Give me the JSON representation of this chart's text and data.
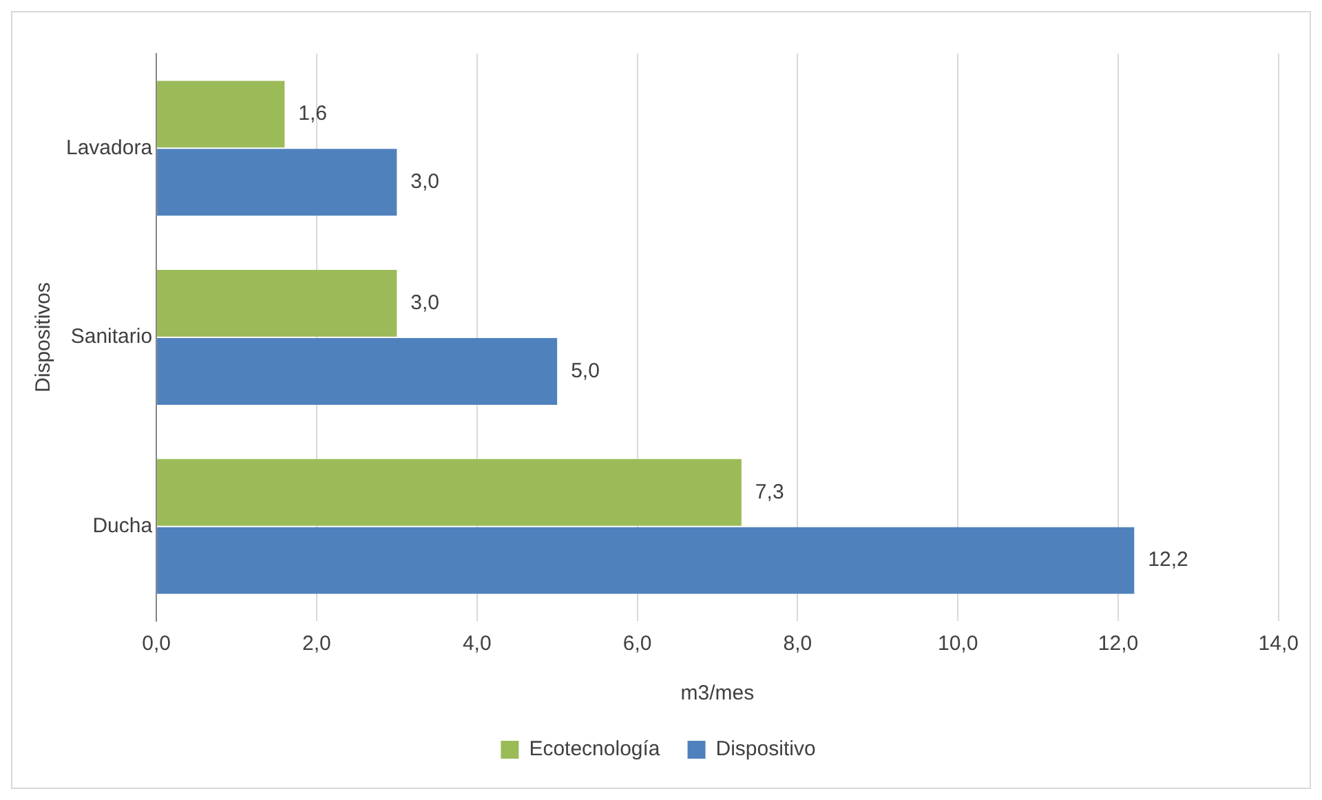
{
  "chart_data": {
    "type": "bar",
    "orientation": "horizontal",
    "categories": [
      "Lavadora",
      "Sanitario",
      "Ducha"
    ],
    "series": [
      {
        "name": "Ecotecnología",
        "color": "#9bbb59",
        "values": [
          1.6,
          3.0,
          7.3
        ],
        "value_labels": [
          "1,6",
          "3,0",
          "7,3"
        ]
      },
      {
        "name": "Dispositivo",
        "color": "#4f81bd",
        "values": [
          3.0,
          5.0,
          12.2
        ],
        "value_labels": [
          "3,0",
          "5,0",
          "12,2"
        ]
      }
    ],
    "xlabel": "m3/mes",
    "ylabel": "Dispositivos",
    "xlim": [
      0,
      14
    ],
    "xticks": [
      {
        "value": 0,
        "label": "0,0"
      },
      {
        "value": 2,
        "label": "2,0"
      },
      {
        "value": 4,
        "label": "4,0"
      },
      {
        "value": 6,
        "label": "6,0"
      },
      {
        "value": 8,
        "label": "8,0"
      },
      {
        "value": 10,
        "label": "10,0"
      },
      {
        "value": 12,
        "label": "12,0"
      },
      {
        "value": 14,
        "label": "14,0"
      }
    ],
    "grid": "x",
    "legend": "bottom"
  }
}
